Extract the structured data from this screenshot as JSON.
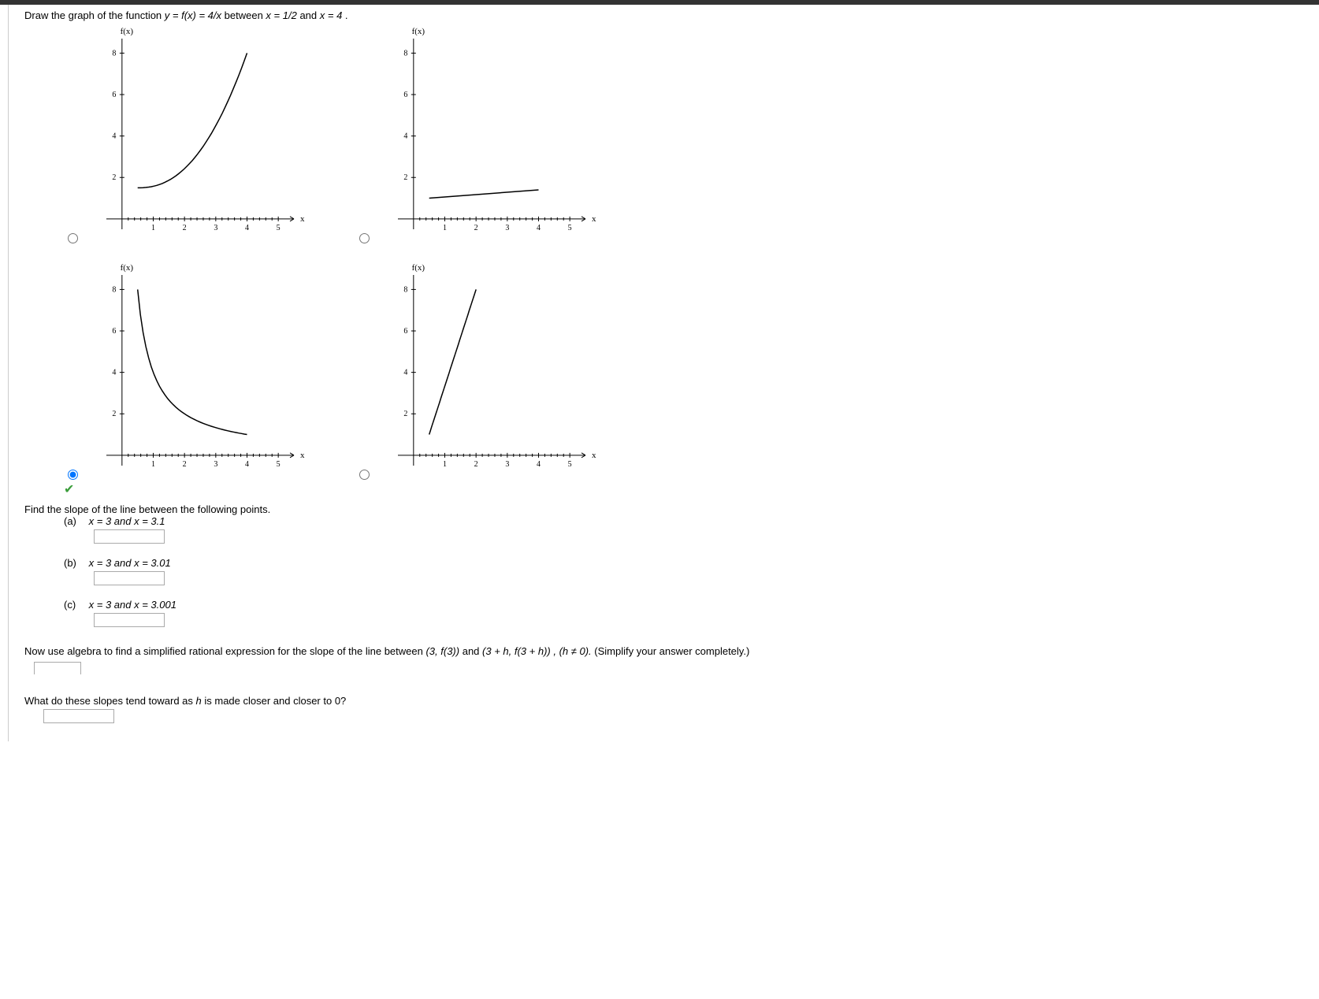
{
  "question": {
    "prompt_prefix": "Draw the graph of the function  ",
    "equation": "y = f(x) = 4/x",
    "between": "  between  ",
    "x1": "x = 1/2",
    "and": "  and  ",
    "x2": "x = 4",
    "period": "."
  },
  "axis": {
    "y_label": "f(x)",
    "x_label": "x",
    "y_ticks": [
      2,
      4,
      6,
      8
    ],
    "x_ticks": [
      1,
      2,
      3,
      4,
      5
    ],
    "x_min": -0.5,
    "x_max": 5.5,
    "y_min": -0.5,
    "y_max": 8.7
  },
  "graphs": [
    {
      "id": "A",
      "type": "increasing-concave-up",
      "start": [
        0.5,
        1.5
      ],
      "end": [
        4,
        8
      ],
      "selected": false
    },
    {
      "id": "B",
      "type": "line-shallow",
      "start": [
        0.5,
        1
      ],
      "end": [
        4,
        1.5
      ],
      "selected": false
    },
    {
      "id": "C",
      "type": "reciprocal-decreasing",
      "start": [
        0.5,
        8
      ],
      "end": [
        4,
        1
      ],
      "selected": true,
      "correct": true
    },
    {
      "id": "D",
      "type": "line-steep",
      "start": [
        0.5,
        1
      ],
      "end": [
        2,
        8
      ],
      "selected": false
    }
  ],
  "slope_prompt": "Find the slope of the line between the following points.",
  "parts": [
    {
      "label": "(a)",
      "text": "x = 3 and x = 3.1"
    },
    {
      "label": "(b)",
      "text": "x = 3 and x = 3.01"
    },
    {
      "label": "(c)",
      "text": "x = 3 and x = 3.001"
    }
  ],
  "algebra_prompt": {
    "prefix": "Now use algebra to find a simplified rational expression for the slope of the line between  ",
    "pt1": "(3, f(3))",
    "and": "  and  ",
    "pt2": "(3 + h, f(3 + h))",
    "cond": ",   (h ≠ 0).",
    "suffix": "   (Simplify your answer completely.)"
  },
  "limit_prompt": "What do these slopes tend toward as h is made closer and closer to 0?",
  "colors": {
    "background": "#ffffff",
    "text": "#000000",
    "correct_check": "#3a9d3a",
    "border": "#aaaaaa",
    "topbar": "#333333"
  }
}
